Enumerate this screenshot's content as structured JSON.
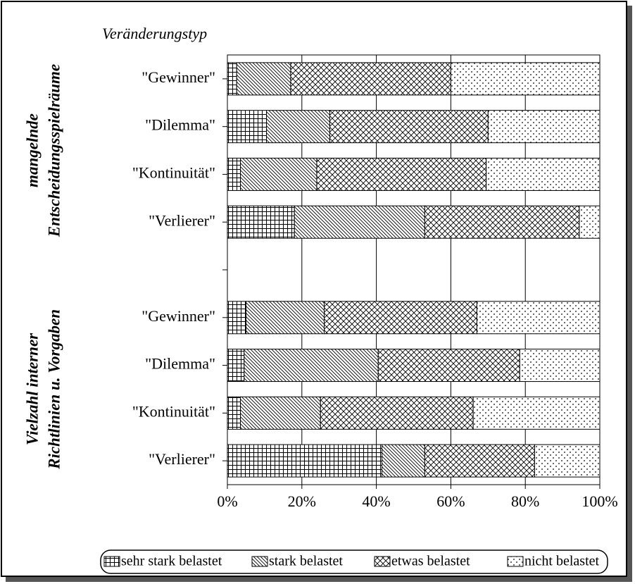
{
  "chart_data": {
    "type": "stacked-barh",
    "y_label": "Veränderungstyp",
    "group_labels": [
      [
        "mangelnde",
        "Entscheidungsspielräume"
      ],
      [
        "Vielzahl interner",
        "Richtlinien u. Vorgaben"
      ]
    ],
    "categories": [
      "\"Gewinner\"",
      "\"Dilemma\"",
      "\"Kontinuität\"",
      "\"Verlierer\"",
      null,
      "\"Gewinner\"",
      "\"Dilemma\"",
      "\"Kontinuität\"",
      "\"Verlierer\""
    ],
    "series": [
      {
        "name": "sehr stark belastet",
        "color": "#000000",
        "pattern": "grid",
        "values": [
          2.5,
          10.5,
          3.5,
          18,
          null,
          5,
          4.5,
          3.5,
          41.5
        ]
      },
      {
        "name": "stark belastet",
        "color": "#000000",
        "pattern": "diagonal",
        "values": [
          14.5,
          17,
          20.5,
          35,
          null,
          21,
          36,
          21.5,
          11.5
        ]
      },
      {
        "name": "etwas belastet",
        "color": "#000000",
        "pattern": "crosshatch",
        "values": [
          43,
          42.5,
          45.5,
          41.5,
          null,
          41,
          38,
          41,
          29.5
        ]
      },
      {
        "name": "nicht belastet",
        "color": "#000000",
        "pattern": "dots",
        "values": [
          40,
          30,
          30.5,
          5.5,
          null,
          33,
          21.5,
          34,
          17.5
        ]
      }
    ],
    "xlim": [
      0,
      100
    ],
    "xticks": [
      {
        "value": 0,
        "label": "0%"
      },
      {
        "value": 20,
        "label": "20%"
      },
      {
        "value": 40,
        "label": "40%"
      },
      {
        "value": 60,
        "label": "60%"
      },
      {
        "value": 80,
        "label": "80%"
      },
      {
        "value": 100,
        "label": "100%"
      }
    ],
    "grid": true,
    "legend": "bottom"
  }
}
